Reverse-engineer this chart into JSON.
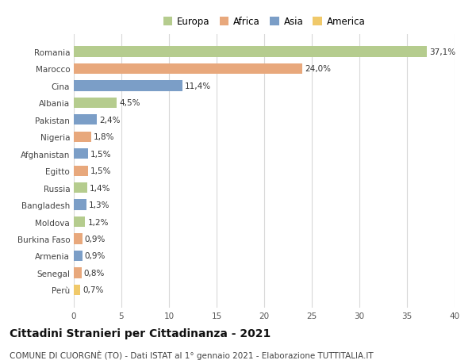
{
  "countries": [
    "Perù",
    "Senegal",
    "Armenia",
    "Burkina Faso",
    "Moldova",
    "Bangladesh",
    "Russia",
    "Egitto",
    "Afghanistan",
    "Nigeria",
    "Pakistan",
    "Albania",
    "Cina",
    "Marocco",
    "Romania"
  ],
  "values": [
    0.7,
    0.8,
    0.9,
    0.9,
    1.2,
    1.3,
    1.4,
    1.5,
    1.5,
    1.8,
    2.4,
    4.5,
    11.4,
    24.0,
    37.1
  ],
  "labels": [
    "0,7%",
    "0,8%",
    "0,9%",
    "0,9%",
    "1,2%",
    "1,3%",
    "1,4%",
    "1,5%",
    "1,5%",
    "1,8%",
    "2,4%",
    "4,5%",
    "11,4%",
    "24,0%",
    "37,1%"
  ],
  "continents": [
    "America",
    "Africa",
    "Asia",
    "Africa",
    "Europa",
    "Asia",
    "Europa",
    "Africa",
    "Asia",
    "Africa",
    "Asia",
    "Europa",
    "Asia",
    "Africa",
    "Europa"
  ],
  "colors": {
    "Europa": "#b5cc8e",
    "Africa": "#e8a87c",
    "Asia": "#7b9ec7",
    "America": "#f0c96a"
  },
  "legend_order": [
    "Europa",
    "Africa",
    "Asia",
    "America"
  ],
  "xlim": [
    0,
    40
  ],
  "xticks": [
    0,
    5,
    10,
    15,
    20,
    25,
    30,
    35,
    40
  ],
  "title": "Cittadini Stranieri per Cittadinanza - 2021",
  "subtitle": "COMUNE DI CUORGNÈ (TO) - Dati ISTAT al 1° gennaio 2021 - Elaborazione TUTTITALIA.IT",
  "background_color": "#ffffff",
  "grid_color": "#d8d8d8",
  "bar_height": 0.62,
  "label_fontsize": 7.5,
  "tick_fontsize": 7.5,
  "title_fontsize": 10,
  "subtitle_fontsize": 7.5,
  "legend_fontsize": 8.5
}
